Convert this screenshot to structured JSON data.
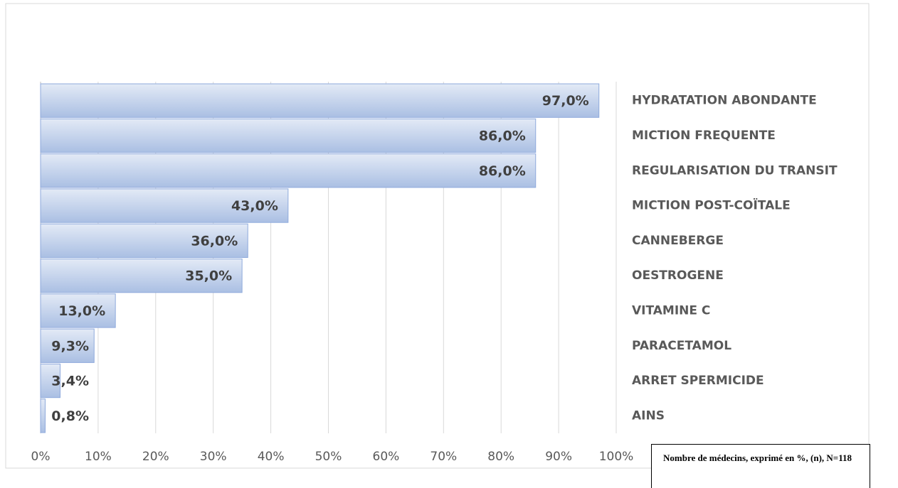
{
  "chart_data": {
    "type": "bar",
    "orientation": "horizontal",
    "categories": [
      "HYDRATATION ABONDANTE",
      "MICTION FREQUENTE",
      "REGULARISATION DU TRANSIT",
      "MICTION POST-COÏTALE",
      "CANNEBERGE",
      "OESTROGENE",
      "VITAMINE C",
      "PARACETAMOL",
      "ARRET SPERMICIDE",
      "AINS"
    ],
    "values": [
      97,
      86,
      86,
      43,
      36,
      35,
      13,
      9.3,
      3.4,
      0.8
    ],
    "value_labels": [
      "97,0%",
      "86,0%",
      "86,0%",
      "43,0%",
      "36,0%",
      "35,0%",
      "13,0%",
      "9,3%",
      "3,4%",
      "0,8%"
    ],
    "color": "#b4c6e7",
    "xlim": [
      0,
      100
    ],
    "xticks": [
      {
        "value": 0,
        "label": "0%"
      },
      {
        "value": 10,
        "label": "10%"
      },
      {
        "value": 20,
        "label": "20%"
      },
      {
        "value": 30,
        "label": "30%"
      },
      {
        "value": 40,
        "label": "40%"
      },
      {
        "value": 50,
        "label": "50%"
      },
      {
        "value": 60,
        "label": "60%"
      },
      {
        "value": 70,
        "label": "70%"
      },
      {
        "value": 80,
        "label": "80%"
      },
      {
        "value": 90,
        "label": "90%"
      },
      {
        "value": 100,
        "label": "100%"
      }
    ],
    "grid": true,
    "annotation": "Nombre de médecins, exprimé en %, (n), N=118"
  }
}
